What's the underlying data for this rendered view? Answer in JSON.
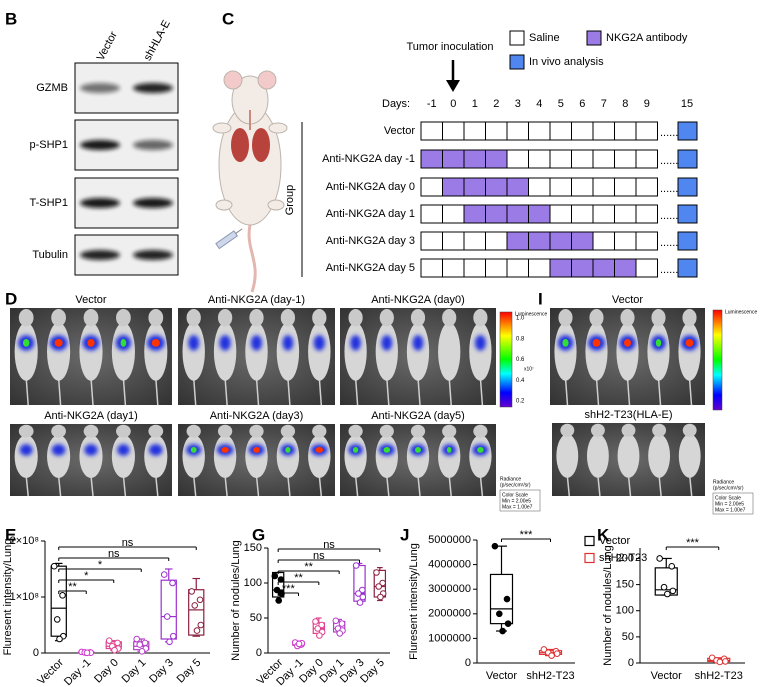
{
  "panel_B": {
    "label": "B",
    "columns": [
      "Vector",
      "shHLA-E"
    ],
    "rows": [
      "GZMB",
      "p-SHP1",
      "T-SHP1",
      "Tubulin"
    ]
  },
  "panel_C": {
    "label": "C",
    "arrow_label": "Tumor inoculation",
    "legend": [
      {
        "label": "Saline",
        "color": "#ffffff"
      },
      {
        "label": "NKG2A antibody",
        "color": "#9b7be6"
      },
      {
        "label": "In vivo analysis",
        "color": "#4f86ef"
      }
    ],
    "days_label": "Days:",
    "days": [
      -1,
      0,
      1,
      2,
      3,
      4,
      5,
      6,
      7,
      8,
      9
    ],
    "analysis_day": 15,
    "ellipsis": "......",
    "group_label": "Group",
    "groups": [
      {
        "name": "Vector",
        "antibody_days": []
      },
      {
        "name": "Anti-NKG2A day -1",
        "antibody_days": [
          -1,
          0,
          1,
          2
        ]
      },
      {
        "name": "Anti-NKG2A day 0",
        "antibody_days": [
          0,
          1,
          2,
          3
        ]
      },
      {
        "name": "Anti-NKG2A day 1",
        "antibody_days": [
          1,
          2,
          3,
          4
        ]
      },
      {
        "name": "Anti-NKG2A day 3",
        "antibody_days": [
          3,
          4,
          5,
          6
        ]
      },
      {
        "name": "Anti-NKG2A day 5",
        "antibody_days": [
          5,
          6,
          7,
          8
        ]
      }
    ]
  },
  "panel_D": {
    "label": "D",
    "images": [
      "Vector",
      "Anti-NKG2A (day-1)",
      "Anti-NKG2A (day0)",
      "Anti-NKG2A (day1)",
      "Anti-NKG2A (day3)",
      "Anti-NKG2A (day5)"
    ],
    "colorbar": {
      "title": "Luminescence",
      "ticks": [
        "1.0",
        "0.8",
        "0.6",
        "0.4",
        "0.2"
      ],
      "unit": "x10⁷",
      "radiance": "Radiance",
      "radiance_unit": "(p/sec/cm²/sr)",
      "color_scale": [
        "Color Scale",
        "Min = 2.00e5",
        "Max = 1.00e7"
      ]
    }
  },
  "panel_I": {
    "label": "I",
    "images": [
      "Vector",
      "shH2-T23(HLA-E)"
    ],
    "colorbar": {
      "title": "Luminescence",
      "radiance": "Radiance",
      "radiance_unit": "(p/sec/cm²/sr)",
      "color_scale": [
        "Color Scale",
        "Min = 2.00e5",
        "Max = 1.00e7"
      ]
    }
  },
  "panel_E": {
    "label": "E",
    "type": "box",
    "y_label": "Fluresent intensity/Lung",
    "ylim": [
      0,
      200000000
    ],
    "yticks": [
      0,
      {
        "value": 100000000,
        "label": "1×10⁸"
      },
      {
        "value": 200000000,
        "label": "2×10⁸"
      }
    ],
    "groups": [
      {
        "name": "Vector",
        "color": "#000000",
        "box": {
          "min": 22000000,
          "q1": 30000000,
          "median": 80000000,
          "q3": 155000000,
          "max": 160000000
        },
        "points": [
          155000000,
          103000000,
          60000000,
          30000000,
          25000000
        ]
      },
      {
        "name": "Day -1",
        "color": "#cc33cc",
        "box": {
          "min": 300000,
          "q1": 500000,
          "median": 1000000,
          "q3": 2000000,
          "max": 2000000
        },
        "points": [
          2000000,
          1000000,
          1000000,
          500000,
          300000
        ]
      },
      {
        "name": "Day 0",
        "color": "#e0428e",
        "box": {
          "min": 5000000,
          "q1": 8000000,
          "median": 12000000,
          "q3": 20000000,
          "max": 22000000
        },
        "points": [
          22000000,
          18000000,
          12000000,
          8000000,
          5000000
        ]
      },
      {
        "name": "Day 1",
        "color": "#b53ec8",
        "box": {
          "min": 3000000,
          "q1": 6000000,
          "median": 12000000,
          "q3": 20000000,
          "max": 25000000
        },
        "points": [
          25000000,
          18000000,
          15000000,
          8000000,
          3000000
        ]
      },
      {
        "name": "Day 3",
        "color": "#9b30d0",
        "box": {
          "min": 20000000,
          "q1": 25000000,
          "median": 65000000,
          "q3": 130000000,
          "max": 150000000
        },
        "points": [
          140000000,
          125000000,
          65000000,
          30000000,
          20000000
        ]
      },
      {
        "name": "Day 5",
        "color": "#8b2040",
        "box": {
          "min": 30000000,
          "q1": 32000000,
          "median": 77000000,
          "q3": 113000000,
          "max": 133000000
        },
        "points": [
          110000000,
          95000000,
          85000000,
          50000000,
          40000000
        ]
      }
    ],
    "significance": [
      null,
      "**",
      "*",
      "*",
      "ns",
      "ns"
    ]
  },
  "panel_G": {
    "label": "G",
    "type": "box",
    "y_label": "Number of nodules/Lung",
    "ylim": [
      0,
      150
    ],
    "yticks": [
      0,
      50,
      100,
      150
    ],
    "groups": [
      {
        "name": "Vector",
        "color": "#000000",
        "filled": true,
        "box": {
          "min": 75,
          "q1": 80,
          "median": 90,
          "q3": 115,
          "max": 115
        },
        "points": [
          110,
          105,
          90,
          85,
          75
        ]
      },
      {
        "name": "Day -1",
        "color": "#cc33cc",
        "box": {
          "min": 10,
          "q1": 11,
          "median": 13,
          "q3": 15,
          "max": 17
        },
        "points": [
          15,
          12,
          10,
          14,
          13
        ]
      },
      {
        "name": "Day 0",
        "color": "#e0428e",
        "box": {
          "min": 25,
          "q1": 28,
          "median": 35,
          "q3": 43,
          "max": 50
        },
        "points": [
          45,
          40,
          35,
          30,
          25
        ]
      },
      {
        "name": "Day 1",
        "color": "#b53ec8",
        "box": {
          "min": 28,
          "q1": 30,
          "median": 35,
          "q3": 45,
          "max": 48
        },
        "points": [
          46,
          42,
          35,
          32,
          28
        ]
      },
      {
        "name": "Day 3",
        "color": "#9b30d0",
        "box": {
          "min": 70,
          "q1": 74,
          "median": 85,
          "q3": 125,
          "max": 128
        },
        "points": [
          125,
          90,
          85,
          80,
          72
        ]
      },
      {
        "name": "Day 5",
        "color": "#8b2040",
        "box": {
          "min": 75,
          "q1": 80,
          "median": 95,
          "q3": 118,
          "max": 122
        },
        "points": [
          115,
          100,
          95,
          85,
          80
        ]
      }
    ],
    "significance": [
      null,
      "***",
      "**",
      "**",
      "ns",
      "ns"
    ]
  },
  "panel_J": {
    "label": "J",
    "type": "box",
    "y_label": "Fluresent intensity/Lung",
    "ylim": [
      0,
      5000000
    ],
    "yticks": [
      0,
      1000000,
      2000000,
      3000000,
      4000000,
      5000000
    ],
    "legend": true,
    "groups": [
      {
        "name": "Vector",
        "color": "#000000",
        "filled": true,
        "box": {
          "min": 1300000,
          "q1": 1600000,
          "median": 2200000,
          "q3": 3600000,
          "max": 4750000
        },
        "points": [
          4750000,
          2600000,
          2000000,
          1600000,
          1300000
        ]
      },
      {
        "name": "shH2-T23",
        "color": "#e03030",
        "box": {
          "min": 300000,
          "q1": 350000,
          "median": 420000,
          "q3": 500000,
          "max": 550000
        },
        "points": [
          550000,
          480000,
          420000,
          380000,
          300000
        ]
      }
    ],
    "significance": [
      null,
      "***"
    ]
  },
  "panel_K": {
    "label": "K",
    "type": "box",
    "y_label": "Number of nodules/Lung",
    "ylim": [
      0,
      220
    ],
    "yticks": [
      0,
      50,
      100,
      150,
      200
    ],
    "groups": [
      {
        "name": "Vector",
        "color": "#000000",
        "box": {
          "min": 130,
          "q1": 130,
          "median": 140,
          "q3": 182,
          "max": 200
        },
        "points": [
          200,
          185,
          145,
          138,
          132
        ]
      },
      {
        "name": "shH2-T23",
        "color": "#e03030",
        "box": {
          "min": 2,
          "q1": 3,
          "median": 5,
          "q3": 9,
          "max": 10
        },
        "points": [
          10,
          8,
          5,
          3,
          2
        ]
      }
    ],
    "significance": [
      null,
      "***"
    ]
  }
}
